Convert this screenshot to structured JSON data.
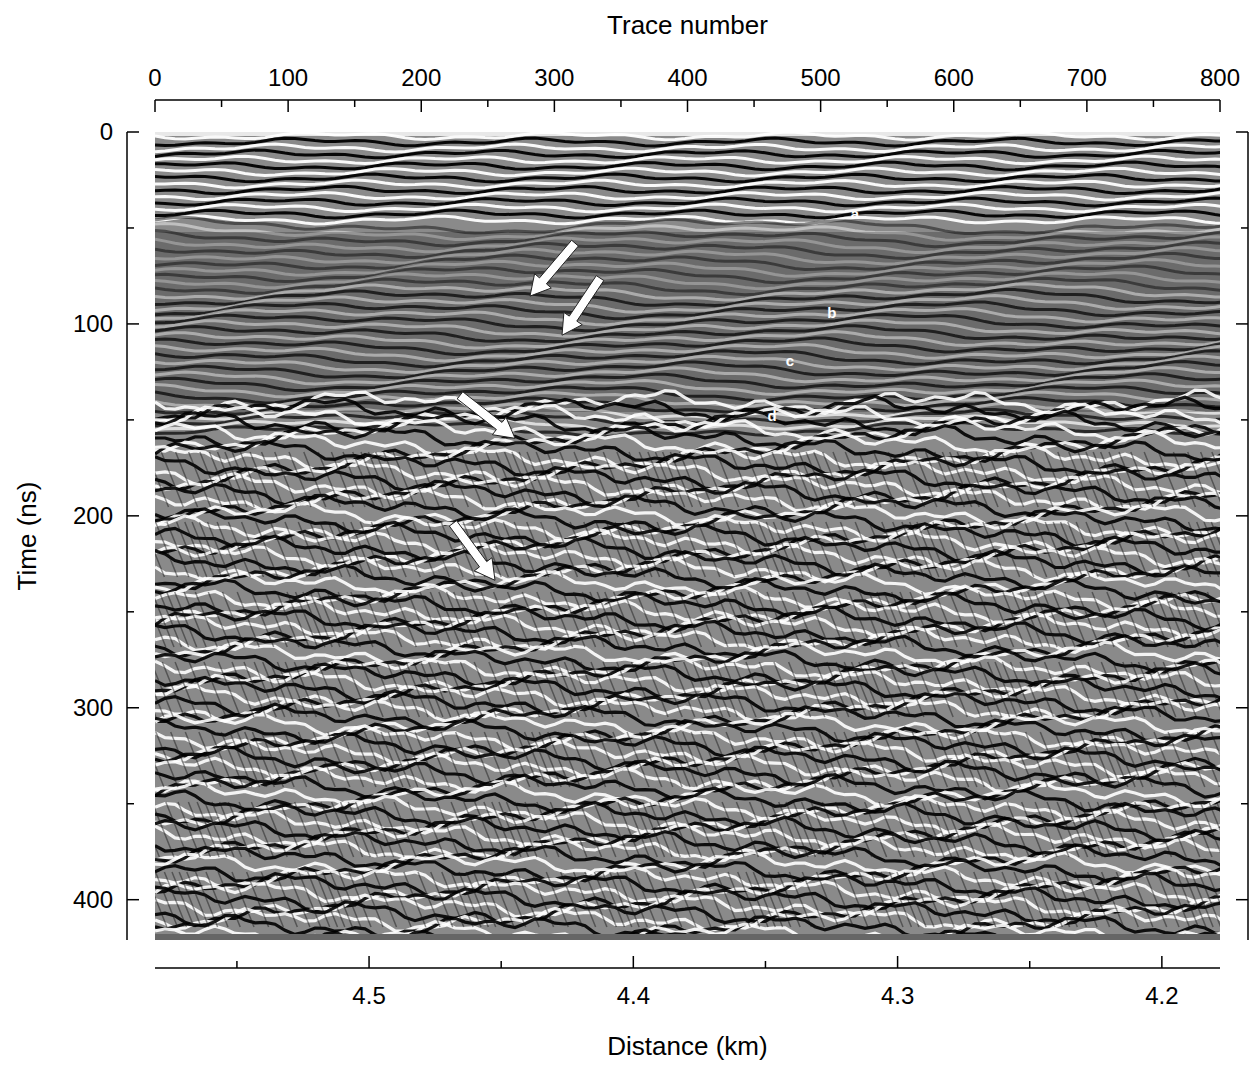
{
  "chart_data": {
    "type": "radargram",
    "x_label_top": "Trace number",
    "y_label": "Time (ns)",
    "x_label_bottom": "Distance (km)",
    "xlim": [
      0,
      800
    ],
    "xticks": [
      0,
      100,
      200,
      300,
      400,
      500,
      600,
      700,
      800
    ],
    "x_minor_ticks": [
      50,
      150,
      250,
      350,
      450,
      550,
      650,
      750
    ],
    "ylim": [
      0,
      421
    ],
    "yticks": [
      0,
      100,
      200,
      300,
      400
    ],
    "y_minor_ticks": [
      50,
      150,
      250,
      350
    ],
    "x2lim": [
      4.581,
      4.178
    ],
    "x2ticks": [
      4.5,
      4.4,
      4.3,
      4.2
    ],
    "x2_minor_ticks": [
      4.55,
      4.45,
      4.35,
      4.25
    ],
    "annotations": [
      {
        "text": "a",
        "x": 525.8,
        "y": 43.3
      },
      {
        "text": "b",
        "x": 508.5,
        "y": 94.9
      },
      {
        "text": "c",
        "x": 477,
        "y": 119.9
      },
      {
        "text": "d",
        "x": 463.5,
        "y": 148.6
      }
    ],
    "arrows": [
      {
        "from": [
          315.5,
          57.9
        ],
        "to": [
          281.7,
          85.5
        ]
      },
      {
        "from": [
          334.3,
          76.1
        ],
        "to": [
          305.7,
          105.9
        ]
      },
      {
        "from": [
          229.1,
          137.2
        ],
        "to": [
          270.4,
          159.6
        ]
      },
      {
        "from": [
          223.8,
          203.9
        ],
        "to": [
          255.4,
          233.6
        ]
      }
    ],
    "grid": false
  }
}
